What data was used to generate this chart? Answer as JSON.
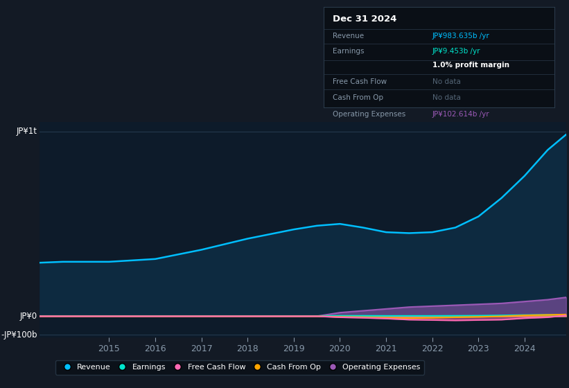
{
  "background_color": "#131a25",
  "plot_bg_color": "#0d1b2a",
  "title": "Dec 31 2024",
  "ylabel_top": "JP¥1t",
  "ylabel_zero": "JP¥0",
  "ylabel_neg": "-JP¥100b",
  "x_years": [
    2013.5,
    2014,
    2015,
    2016,
    2017,
    2018,
    2019,
    2019.5,
    2020,
    2020.5,
    2021,
    2021.5,
    2022,
    2022.5,
    2023,
    2023.5,
    2024,
    2024.5,
    2024.9
  ],
  "revenue": [
    290,
    295,
    295,
    310,
    360,
    420,
    470,
    490,
    500,
    480,
    455,
    450,
    455,
    480,
    540,
    640,
    760,
    900,
    983.635
  ],
  "earnings": [
    2,
    2,
    2,
    2,
    2,
    2,
    2,
    2,
    3,
    3,
    2.5,
    2.5,
    2.5,
    3,
    3.5,
    5,
    7,
    8.5,
    9.453
  ],
  "free_cash_flow": [
    0.5,
    0.5,
    0.5,
    0.5,
    0.5,
    0.5,
    0.5,
    0.5,
    -5,
    -8,
    -12,
    -18,
    -20,
    -22,
    -20,
    -18,
    -10,
    -5,
    5
  ],
  "cash_from_op": [
    0.5,
    0.5,
    0.5,
    0.5,
    0.5,
    0.5,
    0.5,
    0.5,
    -3,
    -5,
    -8,
    -10,
    -8,
    -5,
    -3,
    0,
    5,
    8,
    10
  ],
  "op_expenses": [
    0.5,
    0.5,
    0.5,
    0.5,
    0.5,
    0.5,
    0.5,
    0.5,
    20,
    30,
    40,
    50,
    55,
    60,
    65,
    70,
    80,
    90,
    102.614
  ],
  "revenue_color": "#00bfff",
  "revenue_fill_color": "#0a3a5a",
  "earnings_color": "#00e5cc",
  "fcf_color": "#ff69b4",
  "cfo_color": "#ffa500",
  "opex_color": "#9b59b6",
  "ylim_top": 1050,
  "ylim_bottom": -115,
  "grid_color": "#263d52",
  "text_color": "#8899aa",
  "legend_items": [
    "Revenue",
    "Earnings",
    "Free Cash Flow",
    "Cash From Op",
    "Operating Expenses"
  ],
  "x_tick_labels": [
    "2015",
    "2016",
    "2017",
    "2018",
    "2019",
    "2020",
    "2021",
    "2022",
    "2023",
    "2024"
  ],
  "x_tick_positions": [
    2015,
    2016,
    2017,
    2018,
    2019,
    2020,
    2021,
    2022,
    2023,
    2024
  ]
}
